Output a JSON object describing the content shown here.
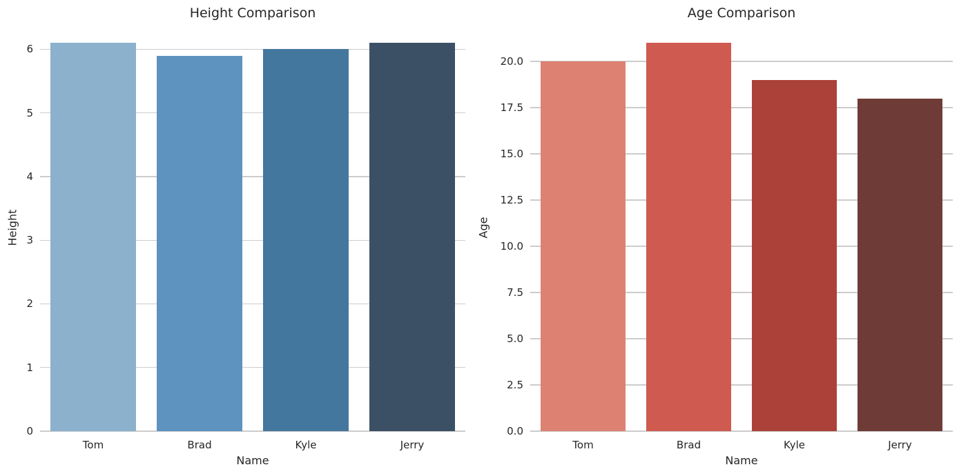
{
  "figure": {
    "background": "#ffffff",
    "text_color": "#262626",
    "grid_color": "#cccccc"
  },
  "chart_data": [
    {
      "type": "bar",
      "title": "Height Comparison",
      "xlabel": "Name",
      "ylabel": "Height",
      "categories": [
        "Tom",
        "Brad",
        "Kyle",
        "Jerry"
      ],
      "values": [
        6.1,
        5.9,
        6.0,
        6.1
      ],
      "bar_colors": [
        "#8bb1cd",
        "#5d93be",
        "#44779d",
        "#3b5064"
      ],
      "yticks": [
        0,
        1,
        2,
        3,
        4,
        5,
        6
      ],
      "ytick_labels": [
        "0",
        "1",
        "2",
        "3",
        "4",
        "5",
        "6"
      ],
      "ylim": [
        0,
        6.405
      ],
      "grid": "horizontal",
      "legend": false,
      "bar_width_fraction": 0.8
    },
    {
      "type": "bar",
      "title": "Age Comparison",
      "xlabel": "Name",
      "ylabel": "Age",
      "categories": [
        "Tom",
        "Brad",
        "Kyle",
        "Jerry"
      ],
      "values": [
        20,
        21,
        19,
        18
      ],
      "bar_colors": [
        "#dd8172",
        "#ce5a50",
        "#ac4139",
        "#6f3b37"
      ],
      "yticks": [
        0,
        2.5,
        5,
        7.5,
        10,
        12.5,
        15,
        17.5,
        20
      ],
      "ytick_labels": [
        "0.0",
        "2.5",
        "5.0",
        "7.5",
        "10.0",
        "12.5",
        "15.0",
        "17.5",
        "20.0"
      ],
      "ylim": [
        0,
        22.05
      ],
      "grid": "horizontal",
      "legend": false,
      "bar_width_fraction": 0.8
    }
  ]
}
